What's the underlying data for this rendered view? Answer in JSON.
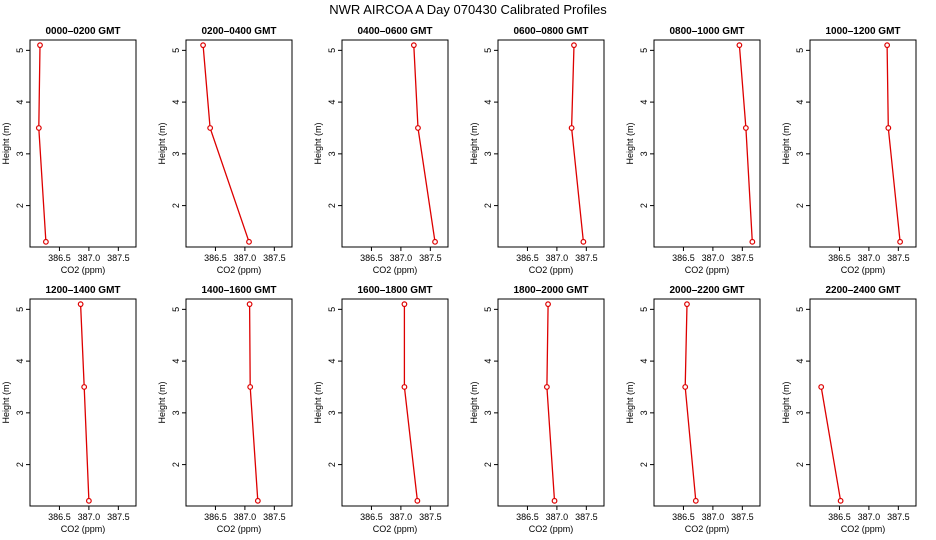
{
  "figure": {
    "title": "NWR AIRCOA A  Day 070430  Calibrated Profiles",
    "line_color": "#dd0000",
    "axis_color": "#000000"
  },
  "chart_data": [
    {
      "type": "line",
      "title": "0000–0200 GMT",
      "xlabel": "CO2 (ppm)",
      "ylabel": "Height (m)",
      "xlim": [
        386.0,
        387.8
      ],
      "ylim": [
        1.2,
        5.2
      ],
      "xticks": [
        "386.5",
        "387.0",
        "387.5"
      ],
      "yticks": [
        "2",
        "3",
        "4",
        "5"
      ],
      "series": [
        {
          "x": [
            386.27,
            386.15,
            386.17
          ],
          "y": [
            1.3,
            3.5,
            5.1
          ]
        }
      ]
    },
    {
      "type": "line",
      "title": "0200–0400 GMT",
      "xlabel": "CO2 (ppm)",
      "ylabel": "Height (m)",
      "xlim": [
        386.0,
        387.8
      ],
      "ylim": [
        1.2,
        5.2
      ],
      "xticks": [
        "386.5",
        "387.0",
        "387.5"
      ],
      "yticks": [
        "2",
        "3",
        "4",
        "5"
      ],
      "series": [
        {
          "x": [
            387.07,
            386.41,
            386.29
          ],
          "y": [
            1.3,
            3.5,
            5.1
          ]
        }
      ]
    },
    {
      "type": "line",
      "title": "0400–0600 GMT",
      "xlabel": "CO2 (ppm)",
      "ylabel": "Height (m)",
      "xlim": [
        386.0,
        387.8
      ],
      "ylim": [
        1.2,
        5.2
      ],
      "xticks": [
        "386.5",
        "387.0",
        "387.5"
      ],
      "yticks": [
        "2",
        "3",
        "4",
        "5"
      ],
      "series": [
        {
          "x": [
            387.58,
            387.29,
            387.22
          ],
          "y": [
            1.3,
            3.5,
            5.1
          ]
        }
      ]
    },
    {
      "type": "line",
      "title": "0600–0800 GMT",
      "xlabel": "CO2 (ppm)",
      "ylabel": "Height (m)",
      "xlim": [
        386.0,
        387.8
      ],
      "ylim": [
        1.2,
        5.2
      ],
      "xticks": [
        "386.5",
        "387.0",
        "387.5"
      ],
      "yticks": [
        "2",
        "3",
        "4",
        "5"
      ],
      "series": [
        {
          "x": [
            387.45,
            387.25,
            387.29
          ],
          "y": [
            1.3,
            3.5,
            5.1
          ]
        }
      ]
    },
    {
      "type": "line",
      "title": "0800–1000 GMT",
      "xlabel": "CO2 (ppm)",
      "ylabel": "Height (m)",
      "xlim": [
        386.0,
        387.8
      ],
      "ylim": [
        1.2,
        5.2
      ],
      "xticks": [
        "386.5",
        "387.0",
        "387.5"
      ],
      "yticks": [
        "2",
        "3",
        "4",
        "5"
      ],
      "series": [
        {
          "x": [
            387.67,
            387.56,
            387.45
          ],
          "y": [
            1.3,
            3.5,
            5.1
          ]
        }
      ]
    },
    {
      "type": "line",
      "title": "1000–1200 GMT",
      "xlabel": "CO2 (ppm)",
      "ylabel": "Height (m)",
      "xlim": [
        386.0,
        387.8
      ],
      "ylim": [
        1.2,
        5.2
      ],
      "xticks": [
        "386.5",
        "387.0",
        "387.5"
      ],
      "yticks": [
        "2",
        "3",
        "4",
        "5"
      ],
      "series": [
        {
          "x": [
            387.53,
            387.33,
            387.31
          ],
          "y": [
            1.3,
            3.5,
            5.1
          ]
        }
      ]
    },
    {
      "type": "line",
      "title": "1200–1400 GMT",
      "xlabel": "CO2 (ppm)",
      "ylabel": "Height (m)",
      "xlim": [
        386.0,
        387.8
      ],
      "ylim": [
        1.2,
        5.2
      ],
      "xticks": [
        "386.5",
        "387.0",
        "387.5"
      ],
      "yticks": [
        "2",
        "3",
        "4",
        "5"
      ],
      "series": [
        {
          "x": [
            387.0,
            386.92,
            386.86
          ],
          "y": [
            1.3,
            3.5,
            5.1
          ]
        }
      ]
    },
    {
      "type": "line",
      "title": "1400–1600 GMT",
      "xlabel": "CO2 (ppm)",
      "ylabel": "Height (m)",
      "xlim": [
        386.0,
        387.8
      ],
      "ylim": [
        1.2,
        5.2
      ],
      "xticks": [
        "386.5",
        "387.0",
        "387.5"
      ],
      "yticks": [
        "2",
        "3",
        "4",
        "5"
      ],
      "series": [
        {
          "x": [
            387.22,
            387.09,
            387.08
          ],
          "y": [
            1.3,
            3.5,
            5.1
          ]
        }
      ]
    },
    {
      "type": "line",
      "title": "1600–1800 GMT",
      "xlabel": "CO2 (ppm)",
      "ylabel": "Height (m)",
      "xlim": [
        386.0,
        387.8
      ],
      "ylim": [
        1.2,
        5.2
      ],
      "xticks": [
        "386.5",
        "387.0",
        "387.5"
      ],
      "yticks": [
        "2",
        "3",
        "4",
        "5"
      ],
      "series": [
        {
          "x": [
            387.28,
            387.06,
            387.06
          ],
          "y": [
            1.3,
            3.5,
            5.1
          ]
        }
      ]
    },
    {
      "type": "line",
      "title": "1800–2000 GMT",
      "xlabel": "CO2 (ppm)",
      "ylabel": "Height (m)",
      "xlim": [
        386.0,
        387.8
      ],
      "ylim": [
        1.2,
        5.2
      ],
      "xticks": [
        "386.5",
        "387.0",
        "387.5"
      ],
      "yticks": [
        "2",
        "3",
        "4",
        "5"
      ],
      "series": [
        {
          "x": [
            386.96,
            386.83,
            386.85
          ],
          "y": [
            1.3,
            3.5,
            5.1
          ]
        }
      ]
    },
    {
      "type": "line",
      "title": "2000–2200 GMT",
      "xlabel": "CO2 (ppm)",
      "ylabel": "Height (m)",
      "xlim": [
        386.0,
        387.8
      ],
      "ylim": [
        1.2,
        5.2
      ],
      "xticks": [
        "386.5",
        "387.0",
        "387.5"
      ],
      "yticks": [
        "2",
        "3",
        "4",
        "5"
      ],
      "series": [
        {
          "x": [
            386.71,
            386.53,
            386.56
          ],
          "y": [
            1.3,
            3.5,
            5.1
          ]
        }
      ]
    },
    {
      "type": "line",
      "title": "2200–2400 GMT",
      "xlabel": "CO2 (ppm)",
      "ylabel": "Height (m)",
      "xlim": [
        386.0,
        387.8
      ],
      "ylim": [
        1.2,
        5.2
      ],
      "xticks": [
        "386.5",
        "387.0",
        "387.5"
      ],
      "yticks": [
        "2",
        "3",
        "4",
        "5"
      ],
      "series": [
        {
          "x": [
            386.52,
            386.19
          ],
          "y": [
            1.3,
            3.5
          ]
        }
      ]
    }
  ]
}
